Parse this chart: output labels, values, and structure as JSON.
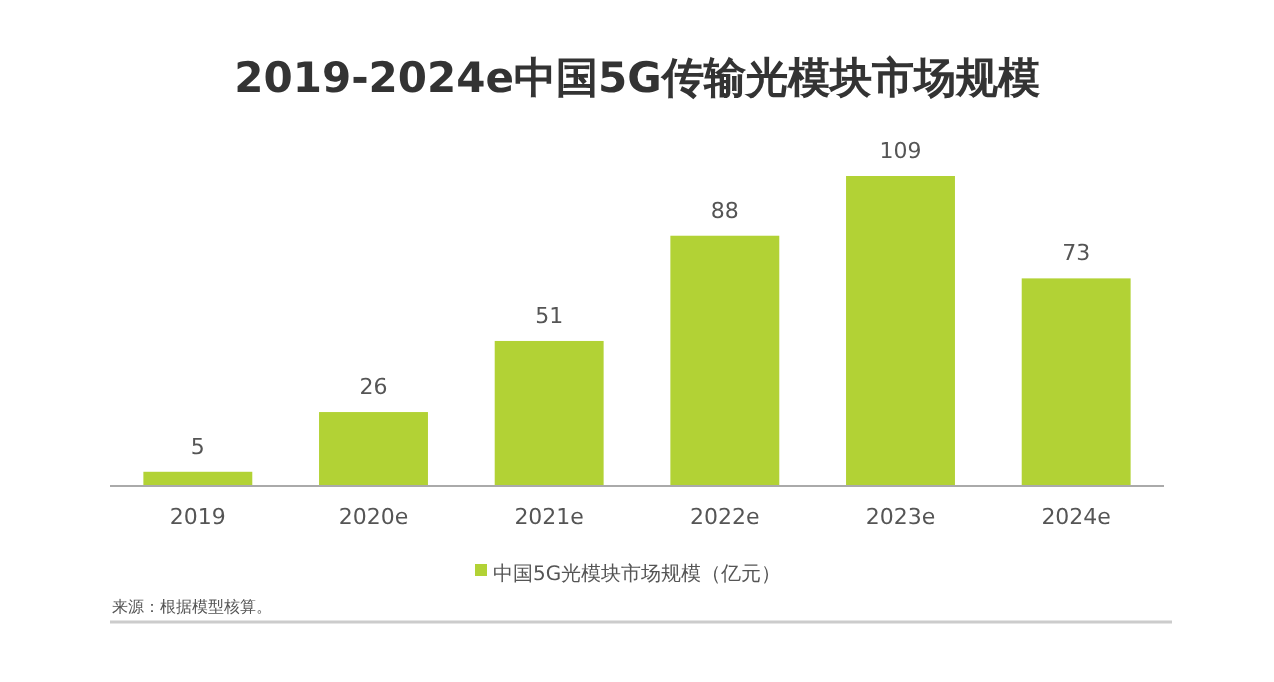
{
  "chart_data": {
    "type": "bar",
    "title": "2019-2024e中国5G传输光模块市场规模",
    "categories": [
      "2019",
      "2020e",
      "2021e",
      "2022e",
      "2023e",
      "2024e"
    ],
    "series": [
      {
        "name": "中国5G光模块市场规模（亿元）",
        "color": "#b2d235",
        "values": [
          5,
          26,
          51,
          88,
          109,
          73
        ]
      }
    ],
    "data_labels": true,
    "legend": "bottom",
    "annotations": [
      "来源：根据模型核算。"
    ]
  }
}
